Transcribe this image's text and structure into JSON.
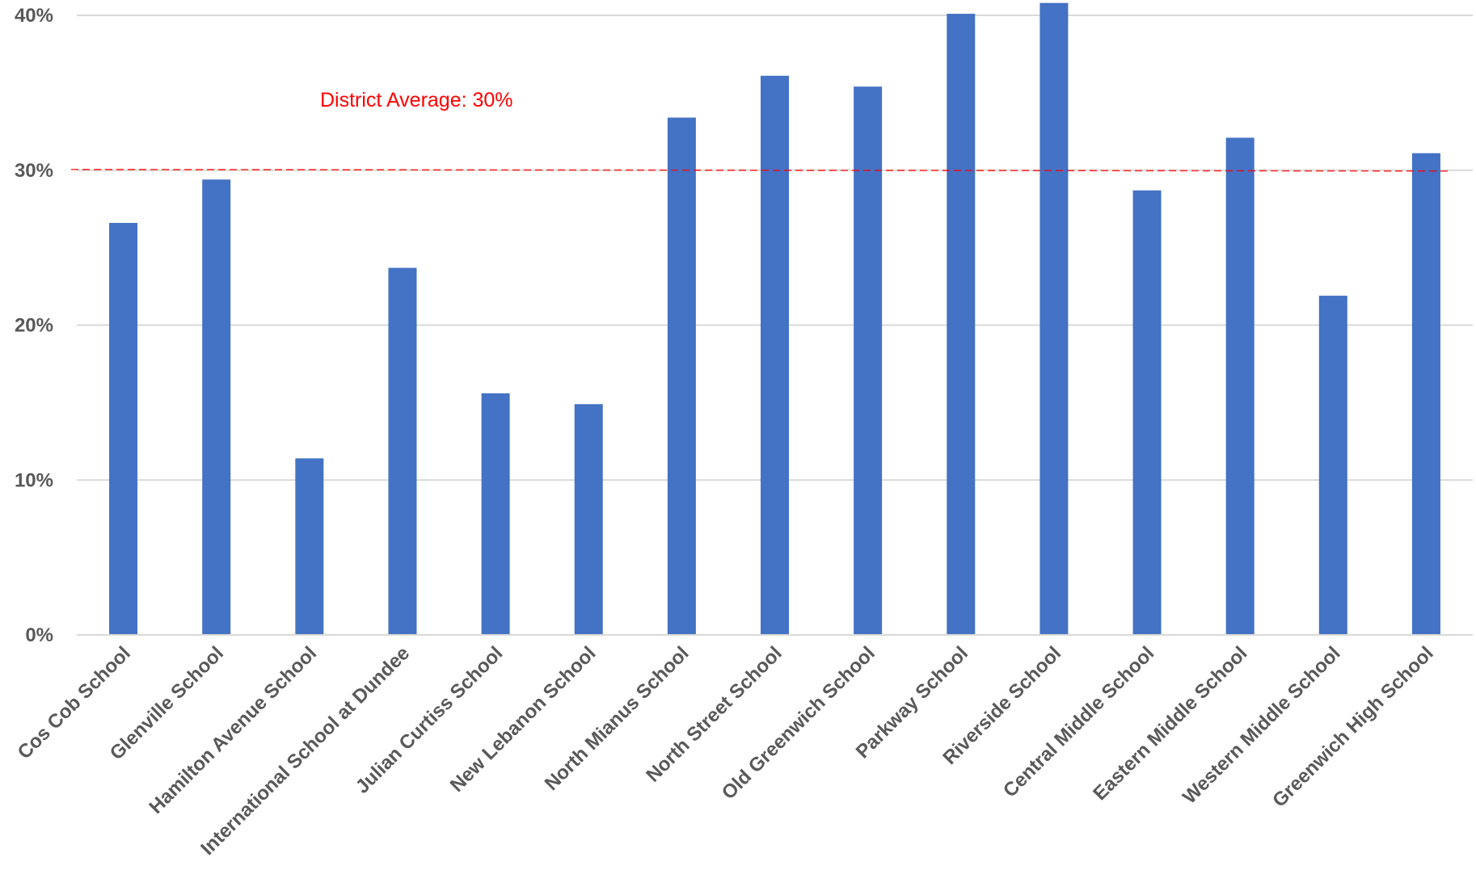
{
  "chart_data": {
    "type": "bar",
    "title": "",
    "xlabel": "",
    "ylabel": "",
    "ylim": [
      0,
      40
    ],
    "y_tick_values": [
      0,
      10,
      20,
      30,
      40
    ],
    "y_tick_labels": [
      "0%",
      "10%",
      "20%",
      "30%",
      "40%"
    ],
    "grid": true,
    "legend": "none",
    "bar_color": "#4472C4",
    "gridline_color": "#D9D9D9",
    "categories": [
      "Cos Cob School",
      "Glenville School",
      "Hamilton Avenue School",
      "International School at Dundee",
      "Julian Curtiss School",
      "New Lebanon School",
      "North Mianus School",
      "North Street School",
      "Old Greenwich School",
      "Parkway School",
      "Riverside School",
      "Central Middle School",
      "Eastern Middle School",
      "Western Middle School",
      "Greenwich High School"
    ],
    "values": [
      26.6,
      29.4,
      11.4,
      23.7,
      15.6,
      14.9,
      33.4,
      36.1,
      35.4,
      40.1,
      40.8,
      28.7,
      32.1,
      21.9,
      31.1
    ],
    "reference_line": {
      "value": 30,
      "label": "District Average: 30%",
      "color": "#FF0000",
      "style": "dashed"
    }
  }
}
